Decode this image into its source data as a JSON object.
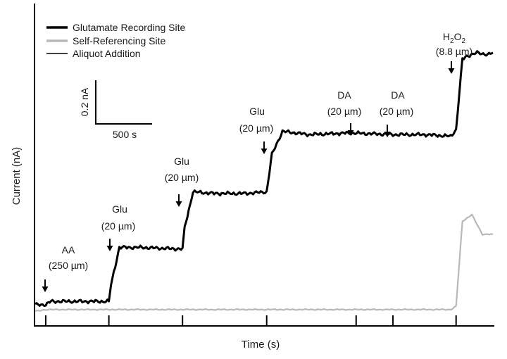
{
  "chart_data": {
    "type": "line",
    "xlabel": "Time (s)",
    "ylabel": "Current (nA)",
    "xlim": [
      0,
      4350
    ],
    "ylim": [
      -0.1,
      1.85
    ],
    "grid": false,
    "legend_position": "top-left",
    "legend": [
      {
        "label": "Glutamate Recording Site",
        "color": "#000000"
      },
      {
        "label": "Self-Referencing Site",
        "color": "#b8b8b8"
      },
      {
        "label": "Aliquot Addition",
        "color": "#000000"
      }
    ],
    "scale_bar": {
      "current_label": "0.2 nA",
      "time_label": "500 s",
      "current_nA": 0.2,
      "time_s": 500
    },
    "tick_positions_s": [
      100,
      700,
      1400,
      2200,
      3050,
      3400,
      4000
    ],
    "annotations": [
      {
        "name": "AA",
        "conc": "(250 µm)",
        "x": 100
      },
      {
        "name": "Glu",
        "conc": "(20 µm)",
        "x": 700
      },
      {
        "name": "Glu",
        "conc": "(20 µm)",
        "x": 1400
      },
      {
        "name": "Glu",
        "conc": "(20 µm)",
        "x": 2200
      },
      {
        "name": "DA",
        "conc": "(20 µm)",
        "x": 3050
      },
      {
        "name": "DA",
        "conc": "(20 µm)",
        "x": 3400
      },
      {
        "name": "H2O2",
        "conc": "(8.8 µm)",
        "x": 4000
      }
    ],
    "series": [
      {
        "name": "Glutamate Recording Site",
        "color": "#000000",
        "x": [
          0,
          100,
          150,
          700,
          720,
          800,
          1000,
          1400,
          1420,
          1500,
          1700,
          2000,
          2200,
          2250,
          2350,
          2600,
          3000,
          3400,
          3700,
          3950,
          4000,
          4060,
          4100,
          4200,
          4300,
          4350
        ],
        "y": [
          0.03,
          0.03,
          0.05,
          0.05,
          0.15,
          0.38,
          0.38,
          0.37,
          0.5,
          0.72,
          0.71,
          0.71,
          0.72,
          0.95,
          1.09,
          1.07,
          1.08,
          1.07,
          1.07,
          1.06,
          1.1,
          1.53,
          1.55,
          1.57,
          1.56,
          1.57
        ]
      },
      {
        "name": "Self-Referencing Site",
        "color": "#b8b8b8",
        "x": [
          0,
          100,
          200,
          700,
          1400,
          2200,
          2700,
          3400,
          3950,
          4000,
          4060,
          4150,
          4250,
          4350
        ],
        "y": [
          -0.01,
          0.0,
          0.0,
          0.0,
          0.0,
          0.0,
          0.0,
          0.0,
          0.0,
          0.02,
          0.54,
          0.58,
          0.46,
          0.46
        ]
      }
    ]
  }
}
